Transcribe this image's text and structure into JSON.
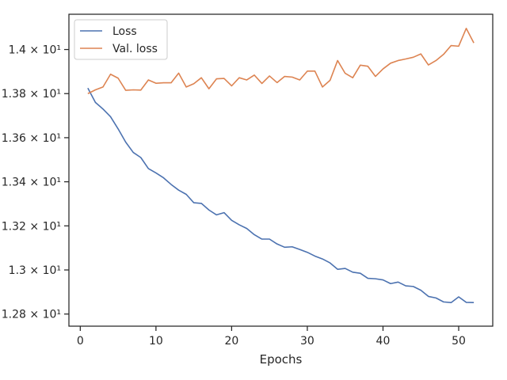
{
  "chart_data": {
    "type": "line",
    "title": "",
    "xlabel": "Epochs",
    "ylabel": "",
    "xlim": [
      -1.5,
      54.5
    ],
    "ylim": [
      12.745,
      14.16
    ],
    "xticks": [
      0,
      10,
      20,
      30,
      40,
      50
    ],
    "xtick_labels": [
      "0",
      "10",
      "20",
      "30",
      "40",
      "50"
    ],
    "yticks": [
      12.8,
      13.0,
      13.2,
      13.4,
      13.6,
      13.8,
      14.0
    ],
    "ytick_labels": [
      "1.28 × 10¹",
      "1.3 × 10¹",
      "1.32 × 10¹",
      "1.34 × 10¹",
      "1.36 × 10¹",
      "1.38 × 10¹",
      "1.4 × 10¹"
    ],
    "grid": false,
    "legend_position": "top-left",
    "colors": {
      "Loss": "#4c72b0",
      "Val. loss": "#dd8452",
      "axes": "#262626"
    },
    "x": [
      1,
      2,
      3,
      4,
      5,
      6,
      7,
      8,
      9,
      10,
      11,
      12,
      13,
      14,
      15,
      16,
      17,
      18,
      19,
      20,
      21,
      22,
      23,
      24,
      25,
      26,
      27,
      28,
      29,
      30,
      31,
      32,
      33,
      34,
      35,
      36,
      37,
      38,
      39,
      40,
      41,
      42,
      43,
      44,
      45,
      46,
      47,
      48,
      49,
      50,
      51,
      52
    ],
    "series": [
      {
        "name": "Loss",
        "values": [
          13.825,
          13.76,
          13.73,
          13.695,
          13.64,
          13.58,
          13.533,
          13.51,
          13.46,
          13.44,
          13.418,
          13.388,
          13.362,
          13.343,
          13.305,
          13.302,
          13.272,
          13.25,
          13.26,
          13.225,
          13.205,
          13.188,
          13.16,
          13.14,
          13.14,
          13.118,
          13.103,
          13.105,
          13.093,
          13.08,
          13.063,
          13.05,
          13.032,
          13.003,
          13.007,
          12.99,
          12.985,
          12.962,
          12.96,
          12.955,
          12.938,
          12.945,
          12.928,
          12.925,
          12.908,
          12.88,
          12.873,
          12.855,
          12.852,
          12.878,
          12.853,
          12.852
        ]
      },
      {
        "name": "Val. loss",
        "values": [
          13.8,
          13.817,
          13.83,
          13.888,
          13.87,
          13.815,
          13.817,
          13.816,
          13.862,
          13.847,
          13.849,
          13.849,
          13.893,
          13.83,
          13.845,
          13.872,
          13.822,
          13.867,
          13.869,
          13.835,
          13.872,
          13.862,
          13.884,
          13.846,
          13.88,
          13.85,
          13.878,
          13.875,
          13.862,
          13.902,
          13.902,
          13.83,
          13.86,
          13.95,
          13.892,
          13.872,
          13.929,
          13.924,
          13.878,
          13.912,
          13.938,
          13.95,
          13.957,
          13.965,
          13.98,
          13.93,
          13.95,
          13.978,
          14.018,
          14.015,
          14.096,
          14.03
        ]
      }
    ]
  }
}
